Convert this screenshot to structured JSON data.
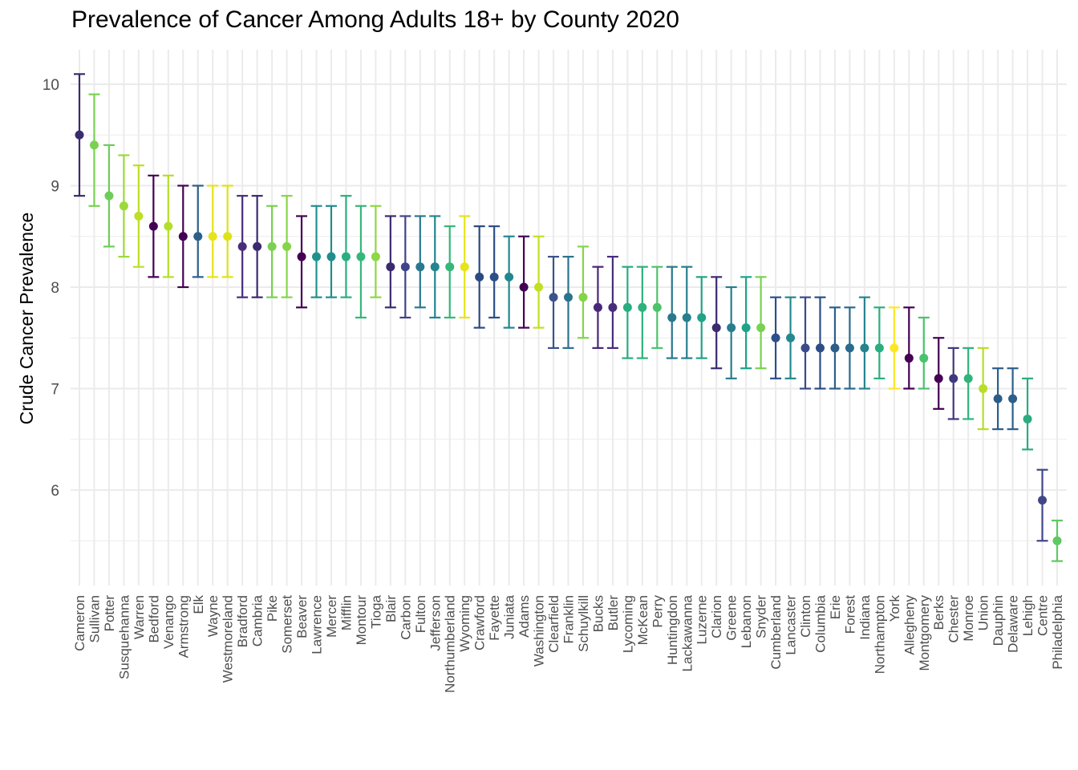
{
  "chart_data": {
    "type": "scatter",
    "title": "Prevalence of Cancer Among Adults 18+ by County 2020",
    "xlabel": "",
    "ylabel": "Crude Cancer Prevalence",
    "ylim": [
      5.0,
      10.3
    ],
    "yticks": [
      6,
      7,
      8,
      9,
      10
    ],
    "grid": true,
    "legend": "none",
    "error_bars": true,
    "points": [
      {
        "county": "Cameron",
        "value": 9.5,
        "low": 8.9,
        "high": 10.1,
        "color": "#3b2a6f"
      },
      {
        "county": "Sullivan",
        "value": 9.4,
        "low": 8.8,
        "high": 9.9,
        "color": "#7ad151"
      },
      {
        "county": "Potter",
        "value": 8.9,
        "low": 8.4,
        "high": 9.4,
        "color": "#6ccd5a"
      },
      {
        "county": "Susquehanna",
        "value": 8.8,
        "low": 8.3,
        "high": 9.3,
        "color": "#9dd93b"
      },
      {
        "county": "Warren",
        "value": 8.7,
        "low": 8.2,
        "high": 9.2,
        "color": "#bddf26"
      },
      {
        "county": "Bedford",
        "value": 8.6,
        "low": 8.1,
        "high": 9.1,
        "color": "#440154"
      },
      {
        "county": "Venango",
        "value": 8.6,
        "low": 8.1,
        "high": 9.1,
        "color": "#b5de2b"
      },
      {
        "county": "Armstrong",
        "value": 8.5,
        "low": 8.0,
        "high": 9.0,
        "color": "#440154"
      },
      {
        "county": "Elk",
        "value": 8.5,
        "low": 8.1,
        "high": 9.0,
        "color": "#2c5f8a"
      },
      {
        "county": "Wayne",
        "value": 8.5,
        "low": 8.1,
        "high": 9.0,
        "color": "#e5e419"
      },
      {
        "county": "Westmoreland",
        "value": 8.5,
        "low": 8.1,
        "high": 9.0,
        "color": "#dde318"
      },
      {
        "county": "Bradford",
        "value": 8.4,
        "low": 7.9,
        "high": 8.9,
        "color": "#472d7b"
      },
      {
        "county": "Cambria",
        "value": 8.4,
        "low": 7.9,
        "high": 8.9,
        "color": "#3b2a6f"
      },
      {
        "county": "Pike",
        "value": 8.4,
        "low": 7.9,
        "high": 8.8,
        "color": "#7ad151"
      },
      {
        "county": "Somerset",
        "value": 8.4,
        "low": 7.9,
        "high": 8.9,
        "color": "#86d549"
      },
      {
        "county": "Beaver",
        "value": 8.3,
        "low": 7.8,
        "high": 8.7,
        "color": "#440154"
      },
      {
        "county": "Lawrence",
        "value": 8.3,
        "low": 7.9,
        "high": 8.8,
        "color": "#21918c"
      },
      {
        "county": "Mercer",
        "value": 8.3,
        "low": 7.9,
        "high": 8.8,
        "color": "#228c8d"
      },
      {
        "county": "Mifflin",
        "value": 8.3,
        "low": 7.9,
        "high": 8.9,
        "color": "#29af7f"
      },
      {
        "county": "Montour",
        "value": 8.3,
        "low": 7.7,
        "high": 8.8,
        "color": "#35b779"
      },
      {
        "county": "Tioga",
        "value": 8.3,
        "low": 7.9,
        "high": 8.8,
        "color": "#8fd744"
      },
      {
        "county": "Blair",
        "value": 8.2,
        "low": 7.8,
        "high": 8.7,
        "color": "#3b2a6f"
      },
      {
        "county": "Carbon",
        "value": 8.2,
        "low": 7.7,
        "high": 8.7,
        "color": "#414487"
      },
      {
        "county": "Fulton",
        "value": 8.2,
        "low": 7.8,
        "high": 8.7,
        "color": "#2a788e"
      },
      {
        "county": "Jefferson",
        "value": 8.2,
        "low": 7.7,
        "high": 8.7,
        "color": "#25858e"
      },
      {
        "county": "Northumberland",
        "value": 8.2,
        "low": 7.7,
        "high": 8.6,
        "color": "#35b779"
      },
      {
        "county": "Wyoming",
        "value": 8.2,
        "low": 7.7,
        "high": 8.7,
        "color": "#e7e419"
      },
      {
        "county": "Crawford",
        "value": 8.1,
        "low": 7.6,
        "high": 8.6,
        "color": "#2c4a80"
      },
      {
        "county": "Fayette",
        "value": 8.1,
        "low": 7.7,
        "high": 8.6,
        "color": "#2c4f88"
      },
      {
        "county": "Juniata",
        "value": 8.1,
        "low": 7.6,
        "high": 8.5,
        "color": "#23878e"
      },
      {
        "county": "Adams",
        "value": 8.0,
        "low": 7.6,
        "high": 8.5,
        "color": "#440154"
      },
      {
        "county": "Washington",
        "value": 8.0,
        "low": 7.6,
        "high": 8.5,
        "color": "#c2df23"
      },
      {
        "county": "Clearfield",
        "value": 7.9,
        "low": 7.4,
        "high": 8.3,
        "color": "#3b528b"
      },
      {
        "county": "Franklin",
        "value": 7.9,
        "low": 7.4,
        "high": 8.3,
        "color": "#2c728e"
      },
      {
        "county": "Schuylkill",
        "value": 7.9,
        "low": 7.5,
        "high": 8.4,
        "color": "#84d44b"
      },
      {
        "county": "Bucks",
        "value": 7.8,
        "low": 7.4,
        "high": 8.2,
        "color": "#482878"
      },
      {
        "county": "Butler",
        "value": 7.8,
        "low": 7.4,
        "high": 8.3,
        "color": "#472d7b"
      },
      {
        "county": "Lycoming",
        "value": 7.8,
        "low": 7.3,
        "high": 8.2,
        "color": "#27ad81"
      },
      {
        "county": "McKean",
        "value": 7.8,
        "low": 7.3,
        "high": 8.2,
        "color": "#2db27d"
      },
      {
        "county": "Perry",
        "value": 7.8,
        "low": 7.4,
        "high": 8.2,
        "color": "#4ec36b"
      },
      {
        "county": "Huntingdon",
        "value": 7.7,
        "low": 7.3,
        "high": 8.2,
        "color": "#2a788e"
      },
      {
        "county": "Lackawanna",
        "value": 7.7,
        "low": 7.3,
        "high": 8.2,
        "color": "#277f8e"
      },
      {
        "county": "Luzerne",
        "value": 7.7,
        "low": 7.3,
        "high": 8.1,
        "color": "#20a386"
      },
      {
        "county": "Clarion",
        "value": 7.6,
        "low": 7.2,
        "high": 8.1,
        "color": "#3b2a6f"
      },
      {
        "county": "Greene",
        "value": 7.6,
        "low": 7.1,
        "high": 8.0,
        "color": "#287c8e"
      },
      {
        "county": "Lebanon",
        "value": 7.6,
        "low": 7.2,
        "high": 8.1,
        "color": "#1fa287"
      },
      {
        "county": "Snyder",
        "value": 7.6,
        "low": 7.2,
        "high": 8.1,
        "color": "#7ad151"
      },
      {
        "county": "Cumberland",
        "value": 7.5,
        "low": 7.1,
        "high": 7.9,
        "color": "#2d4f8a"
      },
      {
        "county": "Lancaster",
        "value": 7.5,
        "low": 7.1,
        "high": 7.9,
        "color": "#23898e"
      },
      {
        "county": "Clinton",
        "value": 7.4,
        "low": 7.0,
        "high": 7.9,
        "color": "#3b4a8a"
      },
      {
        "county": "Columbia",
        "value": 7.4,
        "low": 7.0,
        "high": 7.9,
        "color": "#2c4d86"
      },
      {
        "county": "Erie",
        "value": 7.4,
        "low": 7.0,
        "high": 7.8,
        "color": "#2c5f8a"
      },
      {
        "county": "Forest",
        "value": 7.4,
        "low": 7.0,
        "high": 7.8,
        "color": "#2a6b8e"
      },
      {
        "county": "Indiana",
        "value": 7.4,
        "low": 7.0,
        "high": 7.9,
        "color": "#25848e"
      },
      {
        "county": "Northampton",
        "value": 7.4,
        "low": 7.1,
        "high": 7.8,
        "color": "#29af7f"
      },
      {
        "county": "York",
        "value": 7.4,
        "low": 7.0,
        "high": 7.8,
        "color": "#fde725"
      },
      {
        "county": "Allegheny",
        "value": 7.3,
        "low": 7.0,
        "high": 7.8,
        "color": "#440154"
      },
      {
        "county": "Montgomery",
        "value": 7.3,
        "low": 7.0,
        "high": 7.7,
        "color": "#4ac16d"
      },
      {
        "county": "Berks",
        "value": 7.1,
        "low": 6.8,
        "high": 7.5,
        "color": "#440154"
      },
      {
        "county": "Chester",
        "value": 7.1,
        "low": 6.7,
        "high": 7.4,
        "color": "#3e3a7d"
      },
      {
        "county": "Monroe",
        "value": 7.1,
        "low": 6.7,
        "high": 7.4,
        "color": "#2fb47c"
      },
      {
        "county": "Union",
        "value": 7.0,
        "low": 6.6,
        "high": 7.4,
        "color": "#b8de29"
      },
      {
        "county": "Dauphin",
        "value": 6.9,
        "low": 6.6,
        "high": 7.2,
        "color": "#2c5d8a"
      },
      {
        "county": "Delaware",
        "value": 6.9,
        "low": 6.6,
        "high": 7.2,
        "color": "#2c5f8a"
      },
      {
        "county": "Lehigh",
        "value": 6.7,
        "low": 6.4,
        "high": 7.1,
        "color": "#2bab82"
      },
      {
        "county": "Centre",
        "value": 5.9,
        "low": 5.5,
        "high": 6.2,
        "color": "#3f4788"
      },
      {
        "county": "Philadelphia",
        "value": 5.5,
        "low": 5.3,
        "high": 5.7,
        "color": "#5ec962"
      }
    ]
  }
}
